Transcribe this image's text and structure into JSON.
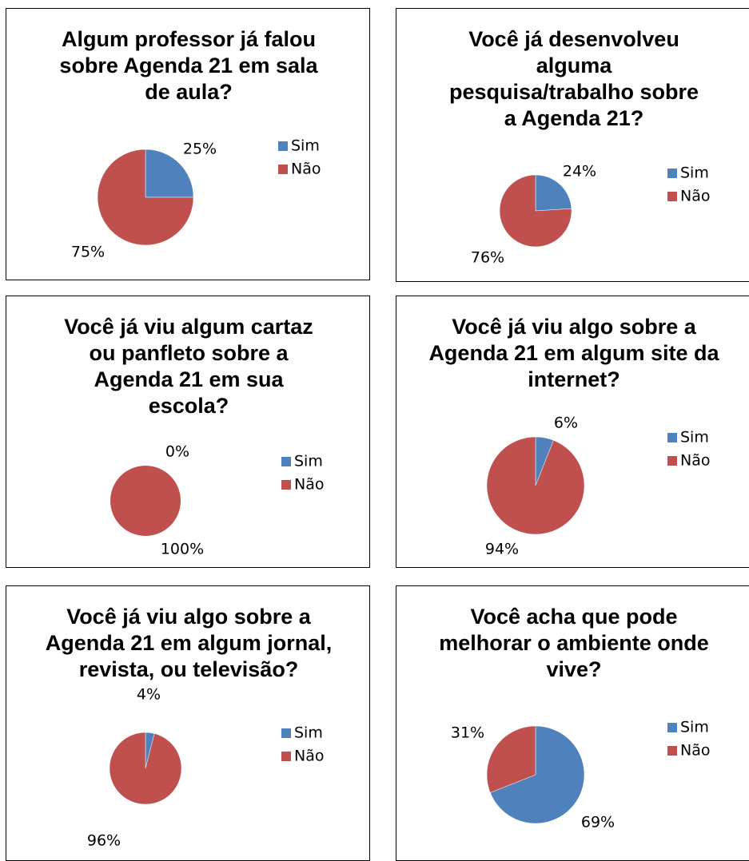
{
  "chart_data": [
    {
      "type": "pie",
      "title": "Algum professor já falou sobre Agenda 21 em sala de aula?",
      "categories": [
        "Sim",
        "Não"
      ],
      "values": [
        25,
        75
      ],
      "value_labels": [
        "25%",
        "75%"
      ],
      "colors": [
        "#4f81bd",
        "#c0504d"
      ]
    },
    {
      "type": "pie",
      "title": "Você já desenvolveu alguma pesquisa/trabalho sobre a Agenda 21?",
      "categories": [
        "Sim",
        "Não"
      ],
      "values": [
        24,
        76
      ],
      "value_labels": [
        "24%",
        "76%"
      ],
      "colors": [
        "#4f81bd",
        "#c0504d"
      ]
    },
    {
      "type": "pie",
      "title": "Você já viu algum cartaz ou panfleto sobre a Agenda 21 em sua escola?",
      "categories": [
        "Sim",
        "Não"
      ],
      "values": [
        0,
        100
      ],
      "value_labels": [
        "0%",
        "100%"
      ],
      "colors": [
        "#4f81bd",
        "#c0504d"
      ]
    },
    {
      "type": "pie",
      "title": "Você já viu algo sobre a Agenda 21 em algum site da internet?",
      "categories": [
        "Sim",
        "Não"
      ],
      "values": [
        6,
        94
      ],
      "value_labels": [
        "6%",
        "94%"
      ],
      "colors": [
        "#4f81bd",
        "#c0504d"
      ]
    },
    {
      "type": "pie",
      "title": "Você já viu algo sobre a Agenda 21 em algum jornal, revista, ou televisão?",
      "categories": [
        "Sim",
        "Não"
      ],
      "values": [
        4,
        96
      ],
      "value_labels": [
        "4%",
        "96%"
      ],
      "colors": [
        "#4f81bd",
        "#c0504d"
      ]
    },
    {
      "type": "pie",
      "title": "Você acha que pode melhorar o ambiente onde vive?",
      "categories": [
        "Sim",
        "Não"
      ],
      "values": [
        69,
        31
      ],
      "value_labels": [
        "69%",
        "31%"
      ],
      "colors": [
        "#4f81bd",
        "#c0504d"
      ]
    }
  ]
}
